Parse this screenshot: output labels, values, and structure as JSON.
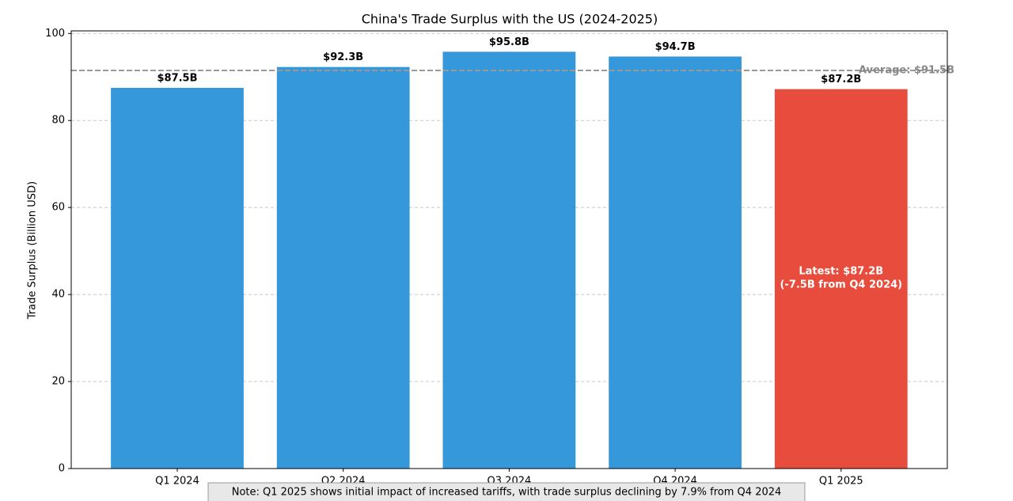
{
  "chart_data": {
    "type": "bar",
    "title": "China's Trade Surplus with the US (2024-2025)",
    "y_label": "Trade Surplus (Billion USD)",
    "categories": [
      "Q1 2024",
      "Q2 2024",
      "Q3 2024",
      "Q4 2024",
      "Q1 2025"
    ],
    "values": [
      87.5,
      92.3,
      95.8,
      94.7,
      87.2
    ],
    "value_labels": [
      "$87.5B",
      "$92.3B",
      "$95.8B",
      "$94.7B",
      "$87.2B"
    ],
    "colors": [
      "#3498db",
      "#3498db",
      "#3498db",
      "#3498db",
      "#e74c3c"
    ],
    "ylim": [
      0,
      100.6
    ],
    "yticks": [
      0,
      20,
      40,
      60,
      80,
      100
    ],
    "grid": true,
    "average": {
      "value": 91.5,
      "label": "Average: $91.5B"
    },
    "annotation": [
      "Latest: $87.2B",
      "(-7.5B from Q4 2024)"
    ],
    "note": "Note: Q1 2025 shows initial impact of increased tariffs, with trade surplus declining by 7.9% from Q4 2024"
  }
}
